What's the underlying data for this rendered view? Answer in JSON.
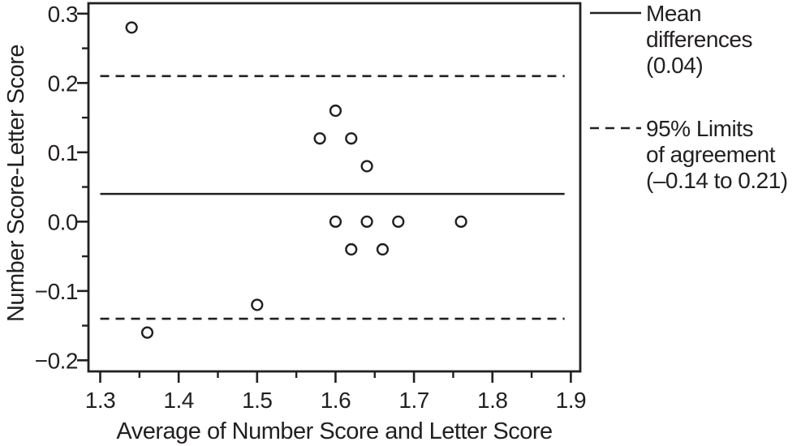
{
  "figure": {
    "background": "#ffffff",
    "ink_color": "#231f20"
  },
  "chart_data": {
    "type": "scatter",
    "title": "",
    "xlabel": "Average of Number Score and Letter Score",
    "ylabel": "Number Score-Letter Score",
    "xlim": [
      1.285,
      1.912
    ],
    "ylim": [
      -0.216,
      0.315
    ],
    "grid": false,
    "legend_position": "right",
    "x_major_ticks": [
      1.3,
      1.4,
      1.5,
      1.6,
      1.7,
      1.8,
      1.9
    ],
    "x_tick_labels": [
      "1.3",
      "1.4",
      "1.5",
      "1.6",
      "1.7",
      "1.8",
      "1.9"
    ],
    "x_minor_ticks": [
      1.35,
      1.45,
      1.55,
      1.65,
      1.75,
      1.85
    ],
    "y_major_ticks": [
      -0.2,
      -0.1,
      0.0,
      0.1,
      0.2,
      0.3
    ],
    "y_tick_labels": [
      "−0.2",
      "−0.1",
      "0.0",
      "0.1",
      "0.2",
      "0.3"
    ],
    "y_minor_ticks": [
      -0.15,
      -0.05,
      0.05,
      0.15,
      0.25
    ],
    "points": [
      [
        1.34,
        0.28
      ],
      [
        1.6,
        0.16
      ],
      [
        1.58,
        0.12
      ],
      [
        1.62,
        0.12
      ],
      [
        1.64,
        0.08
      ],
      [
        1.6,
        0.0
      ],
      [
        1.64,
        0.0
      ],
      [
        1.68,
        0.0
      ],
      [
        1.76,
        0.0
      ],
      [
        1.62,
        -0.04
      ],
      [
        1.66,
        -0.04
      ],
      [
        1.5,
        -0.12
      ],
      [
        1.36,
        -0.16
      ]
    ],
    "mean_line": {
      "value": 0.04,
      "style": "solid"
    },
    "upper_loa": {
      "value": 0.21,
      "style": "dashed"
    },
    "lower_loa": {
      "value": -0.14,
      "style": "dashed"
    },
    "line_x_extent": [
      1.3,
      1.892
    ],
    "legend": {
      "entries": [
        {
          "sample": "solid-line-swatch",
          "lines": [
            "Mean",
            "differences",
            "(0.04)"
          ]
        },
        {
          "sample": "dashed-line-swatch",
          "lines": [
            "95% Limits",
            "of agreement",
            "(–0.14 to 0.21)"
          ]
        }
      ]
    }
  }
}
